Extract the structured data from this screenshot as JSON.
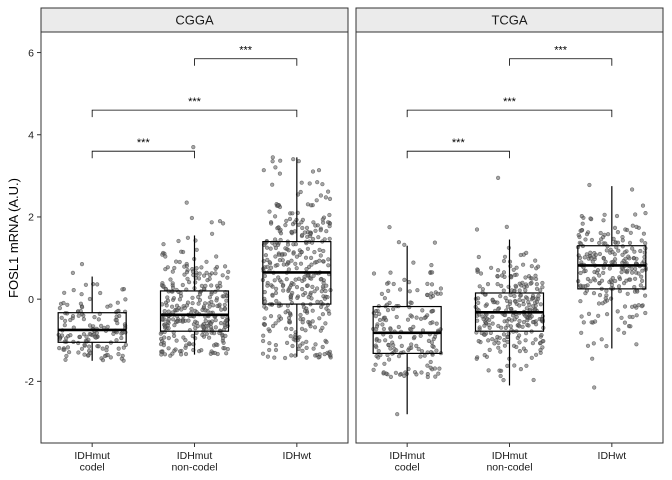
{
  "chart_data": {
    "type": "box",
    "ylabel": "FOSL1 mRNA (A.U.)",
    "xlabel": "",
    "ylim": [
      -3.5,
      6.5
    ],
    "yticks": [
      -2,
      0,
      2,
      4,
      6
    ],
    "categories": [
      "IDHmut\ncodel",
      "IDHmut\nnon-codel",
      "IDHwt"
    ],
    "grid": false,
    "legend": "none",
    "jitter_points_shown": true,
    "panels": [
      {
        "title": "CGGA",
        "boxes": [
          {
            "category": "IDHmut\ncodel",
            "whisker_low": -1.5,
            "q1": -1.05,
            "median": -0.75,
            "q3": -0.33,
            "whisker_high": 0.55,
            "outliers": [],
            "n": 140,
            "spread": [
              -1.5,
              0.9
            ]
          },
          {
            "category": "IDHmut\nnon-codel",
            "whisker_low": -1.35,
            "q1": -0.78,
            "median": -0.38,
            "q3": 0.2,
            "whisker_high": 1.55,
            "outliers": [
              2.35,
              3.7
            ],
            "n": 300,
            "spread": [
              -1.4,
              2.0
            ]
          },
          {
            "category": "IDHwt",
            "whisker_low": -1.4,
            "q1": -0.12,
            "median": 0.65,
            "q3": 1.4,
            "whisker_high": 3.45,
            "outliers": [],
            "n": 360,
            "spread": [
              -1.45,
              3.5
            ]
          }
        ],
        "comparisons": [
          {
            "from": 0,
            "to": 1,
            "y": 3.6,
            "label": "***"
          },
          {
            "from": 0,
            "to": 2,
            "y": 4.6,
            "label": "***"
          },
          {
            "from": 1,
            "to": 2,
            "y": 5.85,
            "label": "***"
          }
        ]
      },
      {
        "title": "TCGA",
        "boxes": [
          {
            "category": "IDHmut\ncodel",
            "whisker_low": -2.8,
            "q1": -1.32,
            "median": -0.82,
            "q3": -0.18,
            "whisker_high": 1.3,
            "outliers": [
              -2.8,
              1.75
            ],
            "n": 170,
            "spread": [
              -1.9,
              1.4
            ]
          },
          {
            "category": "IDHmut\nnon-codel",
            "whisker_low": -2.1,
            "q1": -0.78,
            "median": -0.32,
            "q3": 0.15,
            "whisker_high": 1.45,
            "outliers": [
              2.95
            ],
            "n": 270,
            "spread": [
              -2.1,
              1.8
            ]
          },
          {
            "category": "IDHwt",
            "whisker_low": -1.2,
            "q1": 0.25,
            "median": 0.82,
            "q3": 1.3,
            "whisker_high": 2.75,
            "outliers": [
              -2.15,
              -1.45
            ],
            "n": 230,
            "spread": [
              -1.2,
              2.8
            ]
          }
        ],
        "comparisons": [
          {
            "from": 0,
            "to": 1,
            "y": 3.6,
            "label": "***"
          },
          {
            "from": 0,
            "to": 2,
            "y": 4.6,
            "label": "***"
          },
          {
            "from": 1,
            "to": 2,
            "y": 5.85,
            "label": "***"
          }
        ]
      }
    ]
  }
}
